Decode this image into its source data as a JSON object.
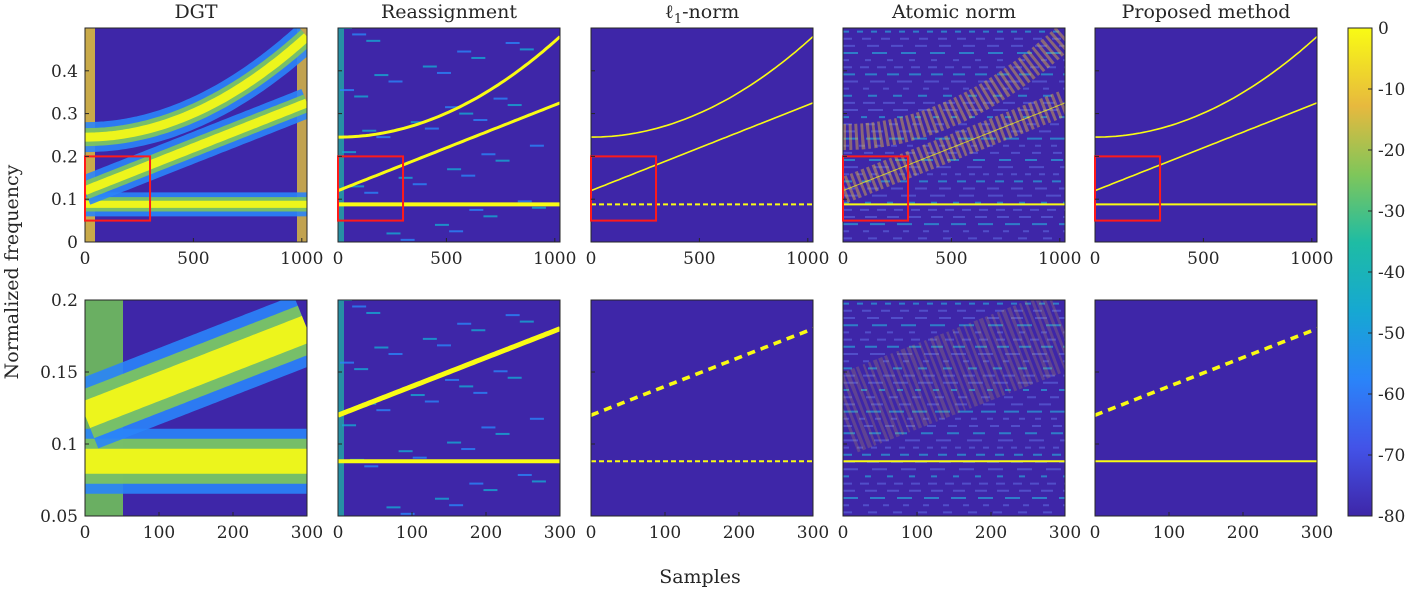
{
  "chart_data": {
    "type": "heatmap",
    "ylabel": "Normalized frequency",
    "xlabel": "Samples",
    "panel_titles": [
      {
        "pre": "DGT",
        "sub": "",
        "post": ""
      },
      {
        "pre": "Reassignment",
        "sub": "",
        "post": ""
      },
      {
        "pre": "ℓ",
        "sub": "1",
        "post": "-norm"
      },
      {
        "pre": "Atomic norm",
        "sub": "",
        "post": ""
      },
      {
        "pre": "Proposed method",
        "sub": "",
        "post": ""
      }
    ],
    "top_row": {
      "xlim": [
        0,
        1024
      ],
      "ylim": [
        0,
        0.5
      ],
      "xticks": [
        0,
        500,
        1000
      ],
      "xtick_labels": [
        "0",
        "500",
        "1000"
      ],
      "yticks": [
        0,
        0.1,
        0.2,
        0.3,
        0.4
      ],
      "ytick_labels": [
        "0",
        "0.1",
        "0.2",
        "0.3",
        "0.4"
      ],
      "zoom_box": {
        "x": [
          0,
          300
        ],
        "y": [
          0.05,
          0.2
        ]
      }
    },
    "bottom_row": {
      "xlim": [
        0,
        300
      ],
      "ylim": [
        0.05,
        0.2
      ],
      "xticks": [
        0,
        100,
        200,
        300
      ],
      "xtick_labels": [
        "0",
        "100",
        "200",
        "300"
      ],
      "yticks": [
        0.05,
        0.1,
        0.15,
        0.2
      ],
      "ytick_labels": [
        "0.05",
        "0.1",
        "0.15",
        "0.2"
      ]
    },
    "components": [
      {
        "name": "constant tone",
        "freq_start": 0.088,
        "freq_end": 0.088
      },
      {
        "name": "linear chirp",
        "freq_start": 0.12,
        "freq_end": 0.325
      },
      {
        "name": "quadratic chirp",
        "freq_start": 0.245,
        "freq_end": 0.48
      }
    ],
    "colorbar": {
      "colormap": "parula",
      "range": [
        -80,
        0
      ],
      "ticks": [
        0,
        -10,
        -20,
        -30,
        -40,
        -50,
        -60,
        -70,
        -80
      ],
      "tick_labels": [
        "0",
        "-10",
        "-20",
        "-30",
        "-40",
        "-50",
        "-60",
        "-70",
        "-80"
      ]
    }
  }
}
